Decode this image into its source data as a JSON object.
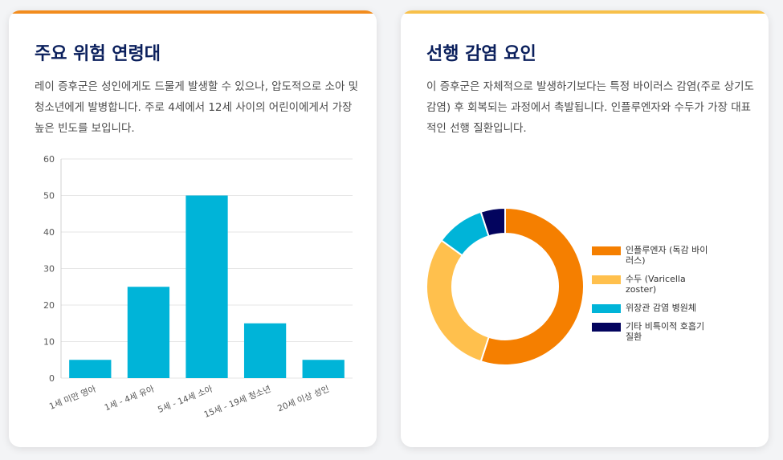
{
  "age_card": {
    "title": "주요 위험 연령대",
    "description": "레이 증후군은 성인에게도 드물게 발생할 수 있으나, 압도적으로 소아 및 청소년에게 발병합니다. 주로 4세에서 12세 사이의 어린이에게서 가장 높은 빈도를 보입니다."
  },
  "infection_card": {
    "title": "선행 감염 요인",
    "description": "이 증후군은 자체적으로 발생하기보다는 특정 바이러스 감염(주로 상기도 감염) 후 회복되는 과정에서 촉발됩니다. 인플루엔자와 수두가 가장 대표적인 선행 질환입니다."
  },
  "chart_data": [
    {
      "type": "bar",
      "categories": [
        "1세 미만 영아",
        "1세 - 4세 유아",
        "5세 - 14세 소아",
        "15세 - 19세 청소년",
        "20세 이상 성인"
      ],
      "values": [
        5,
        25,
        50,
        15,
        5
      ],
      "ylim": [
        0,
        60
      ],
      "yticks": [
        0,
        10,
        20,
        30,
        40,
        50,
        60
      ],
      "grid": true,
      "bar_color": "#00b4d8"
    },
    {
      "type": "pie",
      "donut": true,
      "legend_position": "right",
      "slices": [
        {
          "label": "인플루엔자 (독감 바이러스)",
          "value": 55,
          "color": "#f57f00"
        },
        {
          "label": "수두 (Varicella zoster)",
          "value": 30,
          "color": "#ffc04d"
        },
        {
          "label": "위장관 감염 병원체",
          "value": 10,
          "color": "#00b4d8"
        },
        {
          "label": "기타 비특이적 호흡기 질환",
          "value": 5,
          "color": "#03045e"
        }
      ]
    }
  ]
}
